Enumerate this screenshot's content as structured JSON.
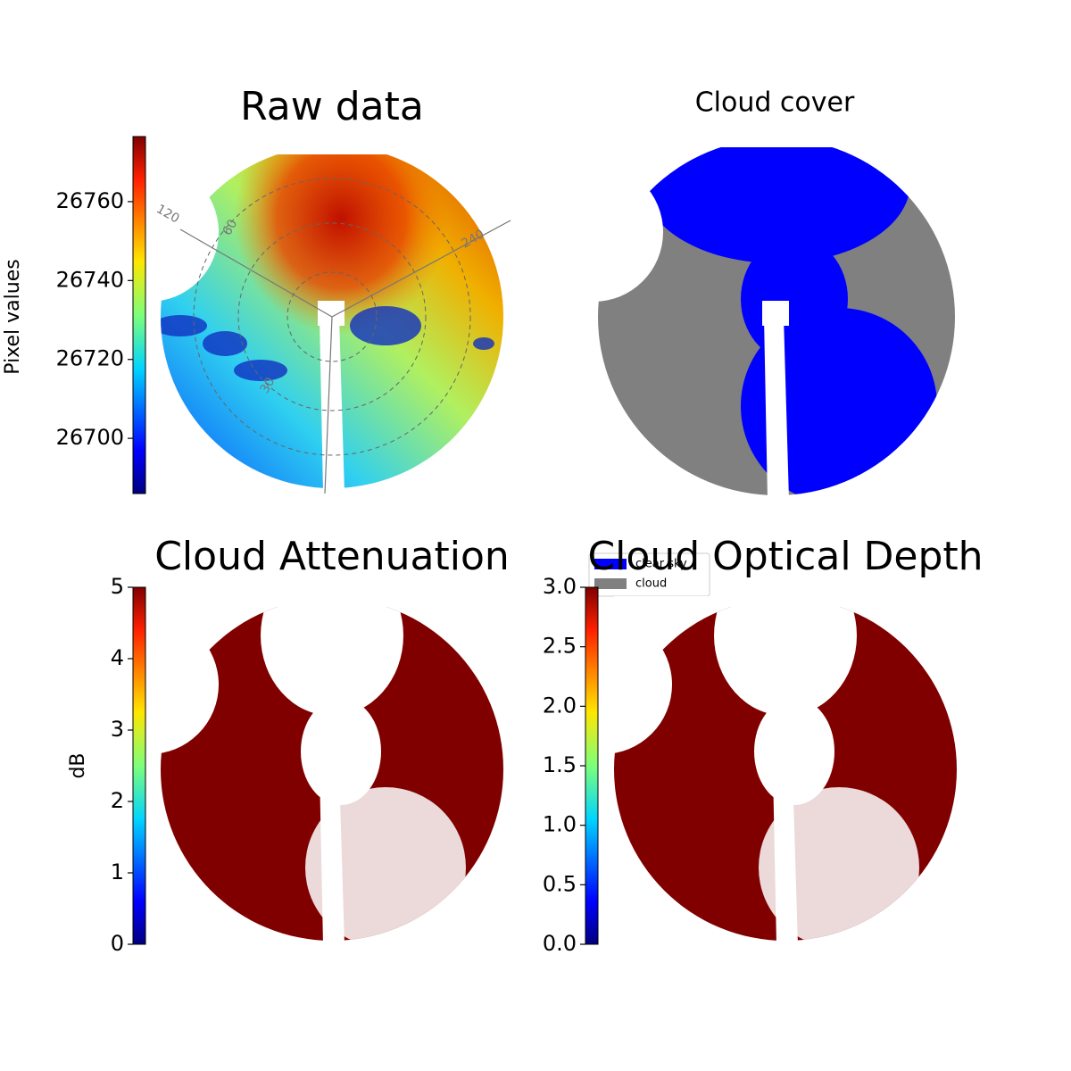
{
  "chart_data": [
    {
      "type": "image",
      "title": "Raw data",
      "colorbar_label": "Pixel values",
      "clim": [
        26686,
        26776.5
      ],
      "cticks": [
        26700,
        26720,
        26740,
        26760
      ],
      "annotations": [
        "120",
        "60",
        "240",
        "30"
      ]
    },
    {
      "type": "image",
      "title": "Cloud cover",
      "legend": [
        {
          "name": "clear sky",
          "color": "#0000ff"
        },
        {
          "name": "cloud",
          "color": "#808080"
        }
      ]
    },
    {
      "type": "image",
      "title": "Cloud Attenuation",
      "colorbar_label": "dB",
      "clim": [
        0,
        5
      ],
      "cticks": [
        0,
        1,
        2,
        3,
        4,
        5
      ]
    },
    {
      "type": "image",
      "title": "Cloud Optical Depth",
      "clim": [
        0,
        3
      ],
      "cticks": [
        {
          "value": 0,
          "label": "0.0"
        },
        0.5,
        {
          "value": 1,
          "label": "1.0"
        },
        1.5,
        {
          "value": 2,
          "label": "2.0"
        },
        2.5,
        {
          "value": 3,
          "label": "3.0"
        }
      ]
    }
  ]
}
